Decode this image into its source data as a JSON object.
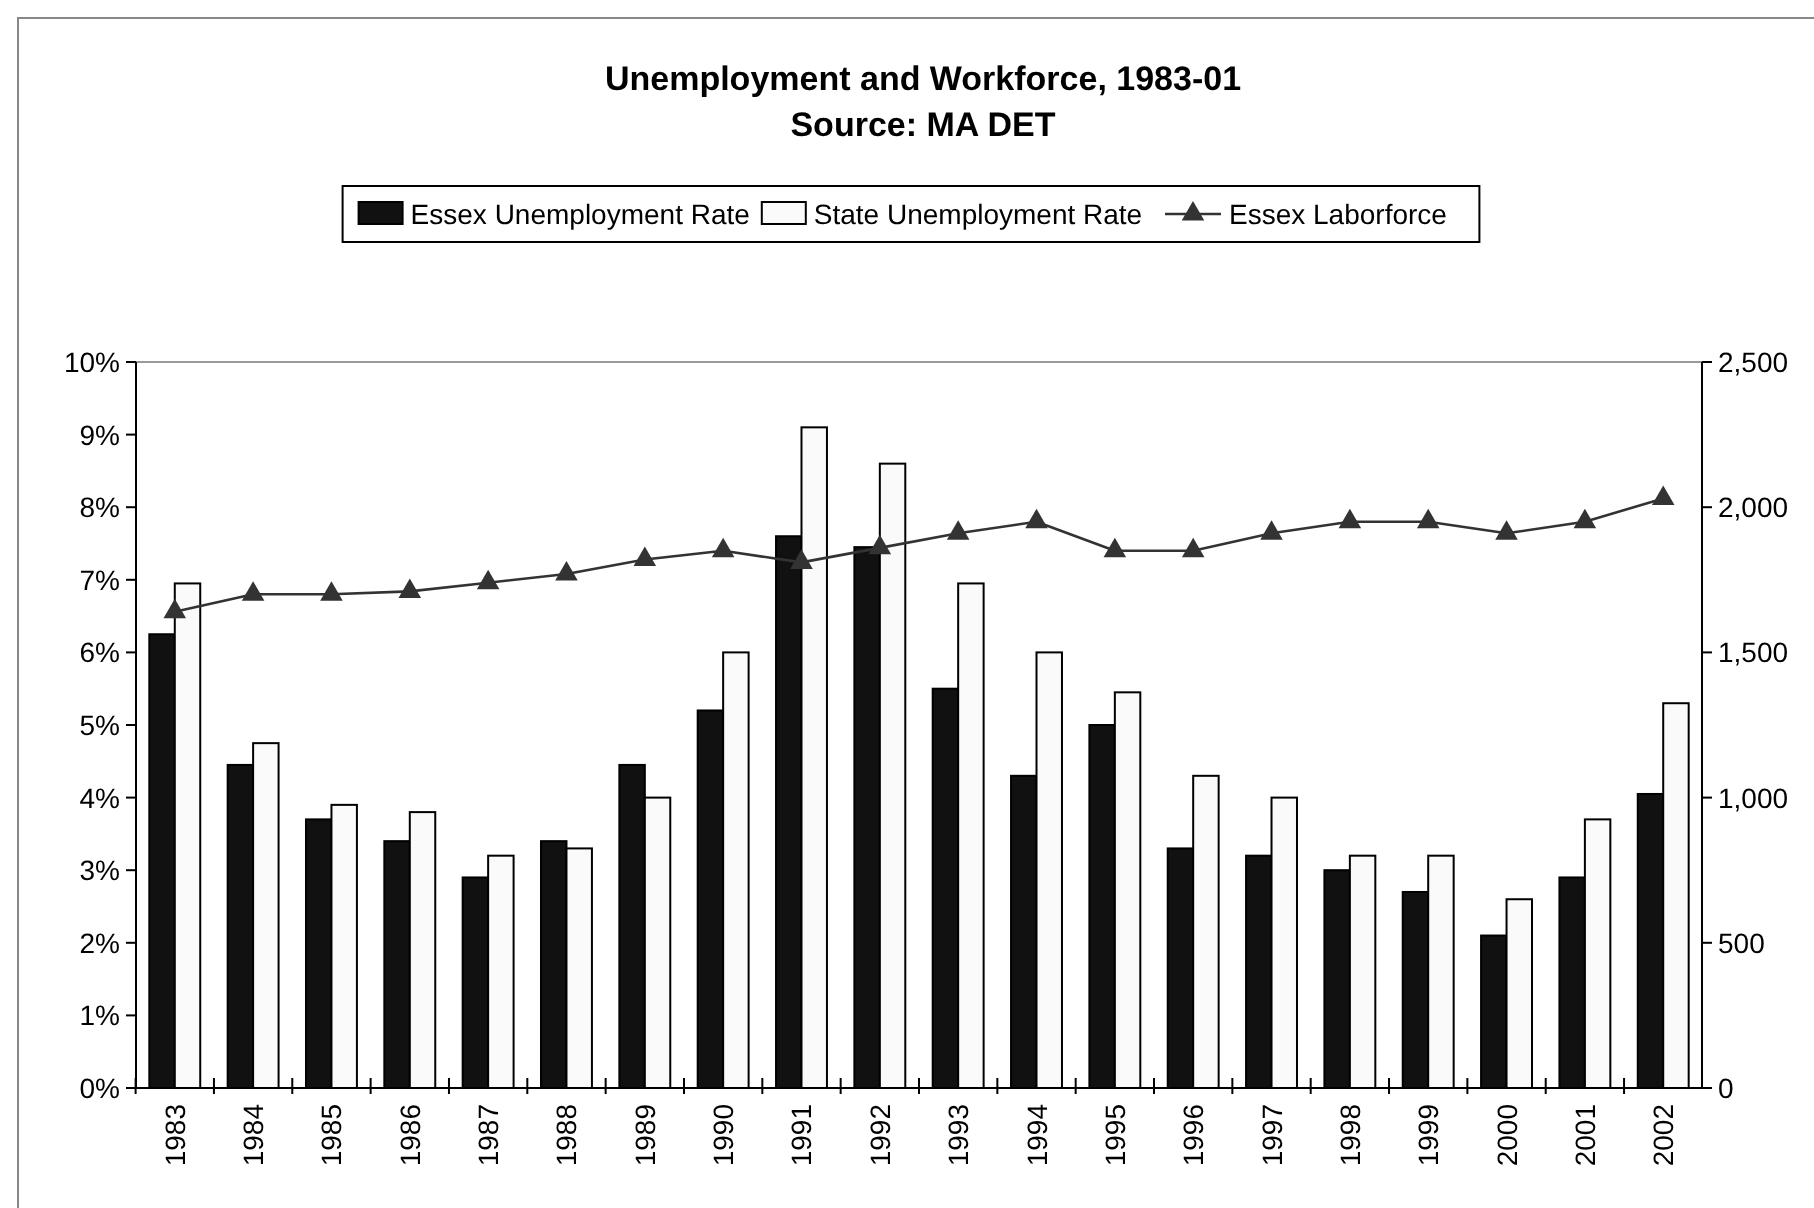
{
  "chart_data": {
    "type": "bar",
    "title": "Unemployment and Workforce, 1983-01",
    "subtitle": "Source:  MA DET",
    "categories": [
      "1983",
      "1984",
      "1985",
      "1986",
      "1987",
      "1988",
      "1989",
      "1990",
      "1991",
      "1992",
      "1993",
      "1994",
      "1995",
      "1996",
      "1997",
      "1998",
      "1999",
      "2000",
      "2001",
      "2002"
    ],
    "series": [
      {
        "name": "Essex Unemployment Rate",
        "color": "#111111",
        "values": [
          6.25,
          4.45,
          3.7,
          3.4,
          2.9,
          3.4,
          4.45,
          5.2,
          7.6,
          7.45,
          5.5,
          4.3,
          5.0,
          3.3,
          3.2,
          3.0,
          2.7,
          2.1,
          2.9,
          4.05
        ]
      },
      {
        "name": "State Unemployment Rate",
        "color": "#fafafa",
        "values": [
          6.95,
          4.75,
          3.9,
          3.8,
          3.2,
          3.3,
          4.0,
          6.0,
          9.1,
          8.6,
          6.95,
          6.0,
          5.45,
          4.3,
          4.0,
          3.2,
          3.2,
          2.6,
          3.7,
          5.3
        ]
      },
      {
        "name": "Essex Laborforce",
        "type": "line",
        "axis": "y2",
        "color": "#333333",
        "marker": "triangle",
        "values": [
          1640,
          1700,
          1700,
          1710,
          1740,
          1770,
          1820,
          1850,
          1810,
          1860,
          1910,
          1950,
          1850,
          1850,
          1910,
          1950,
          1950,
          1910,
          1950,
          2030
        ]
      }
    ],
    "ylim": [
      0,
      10
    ],
    "yticks": [
      {
        "value": 0,
        "label": "0%"
      },
      {
        "value": 1,
        "label": "1%"
      },
      {
        "value": 2,
        "label": "2%"
      },
      {
        "value": 3,
        "label": "3%"
      },
      {
        "value": 4,
        "label": "4%"
      },
      {
        "value": 5,
        "label": "5%"
      },
      {
        "value": 6,
        "label": "6%"
      },
      {
        "value": 7,
        "label": "7%"
      },
      {
        "value": 8,
        "label": "8%"
      },
      {
        "value": 9,
        "label": "9%"
      },
      {
        "value": 10,
        "label": "10%"
      }
    ],
    "y2lim": [
      0,
      2500
    ],
    "y2ticks": [
      {
        "value": 0,
        "label": "0"
      },
      {
        "value": 500,
        "label": "500"
      },
      {
        "value": 1000,
        "label": "1,000"
      },
      {
        "value": 1500,
        "label": "1,500"
      },
      {
        "value": 2000,
        "label": "2,000"
      },
      {
        "value": 2500,
        "label": "2,500"
      }
    ],
    "legend": "top",
    "grid": false
  }
}
